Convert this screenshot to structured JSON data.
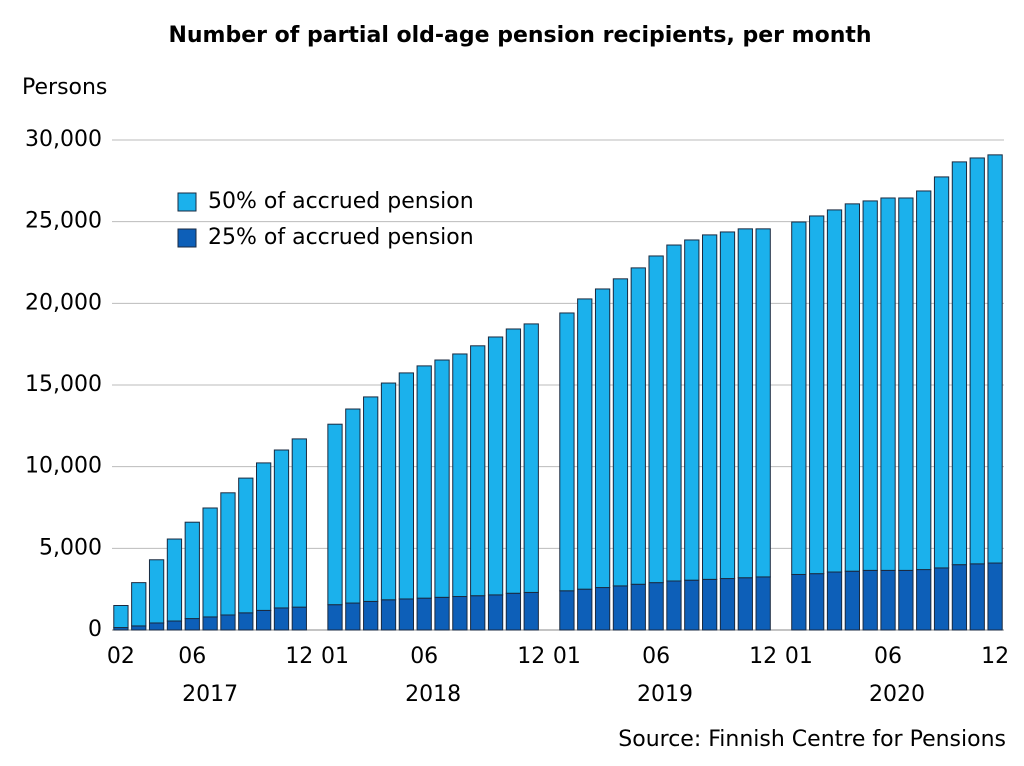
{
  "chart_data": {
    "type": "stacked-bar",
    "title": "Number of partial old-age pension recipients, per month",
    "y_label": "Persons",
    "source": "Source: Finnish Centre for Pensions",
    "groups": [
      "2017",
      "2018",
      "2019",
      "2020"
    ],
    "categories": [
      [
        "02",
        null,
        null,
        null,
        "06",
        null,
        null,
        null,
        null,
        null,
        "12"
      ],
      [
        "01",
        null,
        null,
        null,
        null,
        "06",
        null,
        null,
        null,
        null,
        null,
        "12"
      ],
      [
        "01",
        null,
        null,
        null,
        null,
        "06",
        null,
        null,
        null,
        null,
        null,
        "12"
      ],
      [
        "01",
        null,
        null,
        null,
        null,
        "06",
        null,
        null,
        null,
        null,
        null,
        "12"
      ]
    ],
    "series": [
      {
        "name": "50% of accrued pension",
        "color": "#1bb1ec",
        "values": [
          [
            1350,
            2650,
            3870,
            5020,
            5900,
            6670,
            7480,
            8250,
            9030,
            9670,
            10300
          ],
          [
            11050,
            11880,
            12520,
            13270,
            13840,
            14220,
            14530,
            14850,
            15300,
            15790,
            16180,
            16440
          ],
          [
            17010,
            17770,
            18280,
            18800,
            19370,
            20000,
            20570,
            20830,
            21090,
            21220,
            21360,
            21310
          ],
          [
            21580,
            21900,
            22170,
            22490,
            22620,
            22800,
            22800,
            23180,
            23940,
            24660,
            24850,
            24990
          ]
        ]
      },
      {
        "name": "25% of accrued pension",
        "color": "#0d5fb8",
        "values": [
          [
            150,
            250,
            430,
            550,
            700,
            800,
            920,
            1050,
            1200,
            1350,
            1400
          ],
          [
            1550,
            1650,
            1750,
            1850,
            1900,
            1950,
            2000,
            2050,
            2100,
            2150,
            2250,
            2300
          ],
          [
            2400,
            2500,
            2600,
            2700,
            2800,
            2900,
            3000,
            3050,
            3100,
            3150,
            3200,
            3250
          ],
          [
            3400,
            3450,
            3550,
            3600,
            3650,
            3650,
            3650,
            3700,
            3800,
            4000,
            4050,
            4100
          ]
        ]
      }
    ],
    "ylim": [
      0,
      30000
    ],
    "yticks": [
      0,
      {
        "value": 5000,
        "label": "5,000"
      },
      {
        "value": 10000,
        "label": "10,000"
      },
      {
        "value": 15000,
        "label": "15,000"
      },
      {
        "value": 20000,
        "label": "20,000"
      },
      {
        "value": 25000,
        "label": "25,000"
      },
      {
        "value": 30000,
        "label": "30,000"
      }
    ],
    "grid": true,
    "legend": "top-left"
  }
}
